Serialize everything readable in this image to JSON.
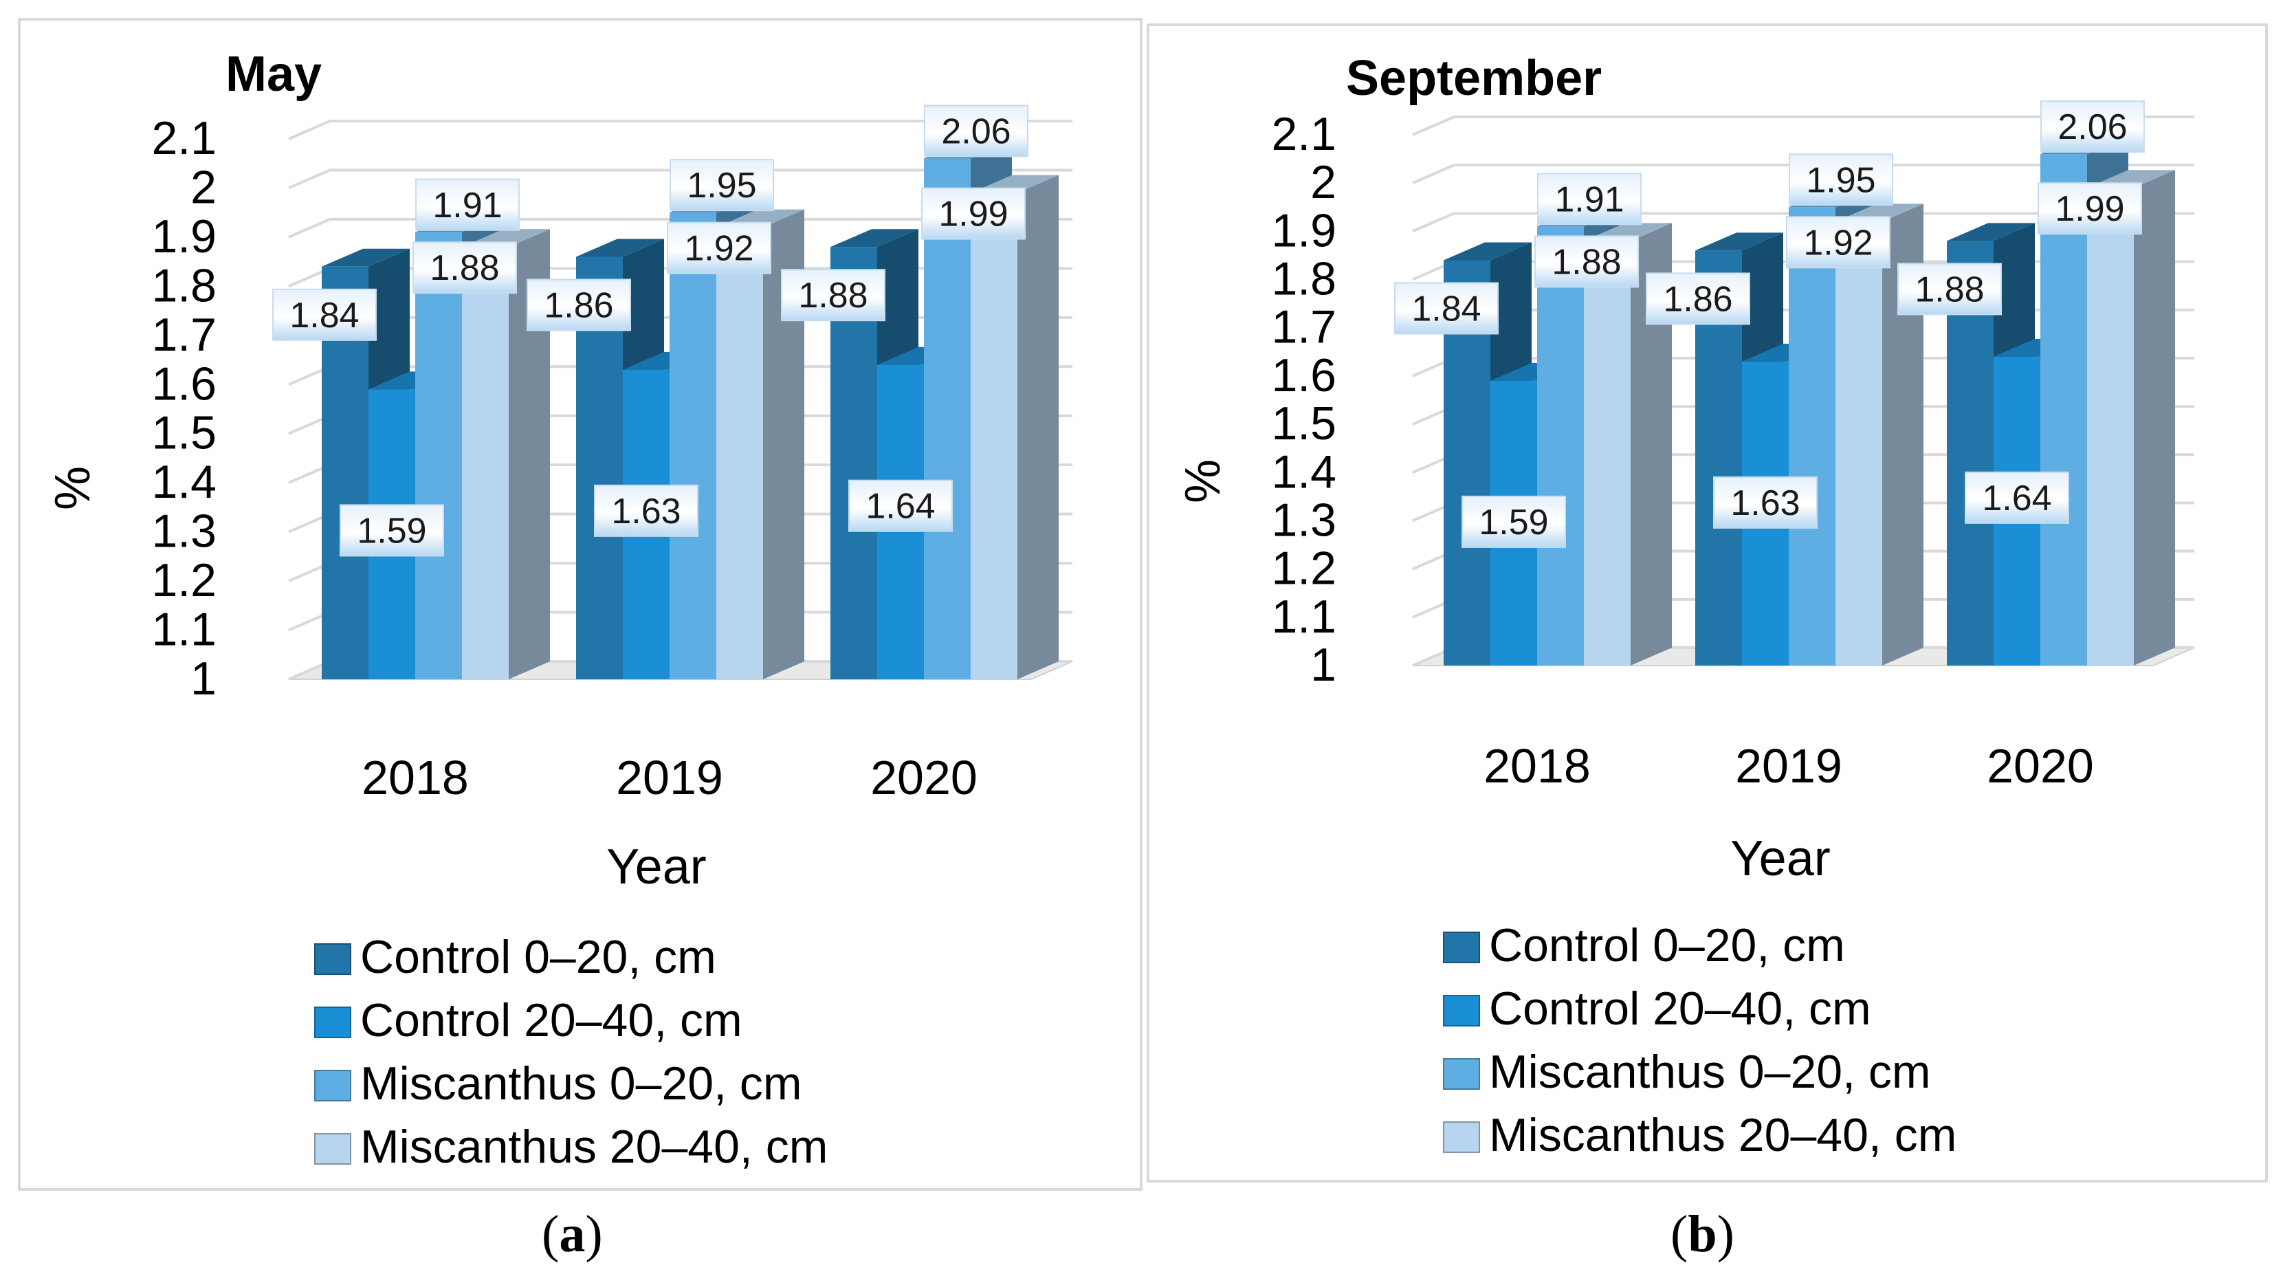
{
  "chart_data": [
    {
      "type": "bar",
      "title": "May",
      "xlabel": "Year",
      "ylabel": "%",
      "ylim": [
        1,
        2.1
      ],
      "yticks": [
        "1",
        "1.1",
        "1.2",
        "1.3",
        "1.4",
        "1.5",
        "1.6",
        "1.7",
        "1.8",
        "1.9",
        "2",
        "2.1"
      ],
      "categories": [
        "2018",
        "2019",
        "2020"
      ],
      "series": [
        {
          "name": "Control 0–20, cm",
          "values": [
            1.84,
            1.86,
            1.88
          ],
          "labels": [
            "1.84",
            "1.86",
            "1.88"
          ]
        },
        {
          "name": "Control 20–40, cm",
          "values": [
            1.59,
            1.63,
            1.64
          ],
          "labels": [
            "1.59",
            "1.63",
            "1.64"
          ]
        },
        {
          "name": "Miscanthus 0–20, cm",
          "values": [
            1.91,
            1.95,
            2.06
          ],
          "labels": [
            "1.91",
            "1.95",
            "2.06"
          ]
        },
        {
          "name": "Miscanthus 20–40, cm",
          "values": [
            1.88,
            1.92,
            1.99
          ],
          "labels": [
            "1.88",
            "1.92",
            "1.99"
          ]
        }
      ],
      "colors": [
        "#2275a8",
        "#1b8fd6",
        "#5faee3",
        "#b7d5ee"
      ],
      "legend_position": "bottom",
      "grid": true
    },
    {
      "type": "bar",
      "title": "September",
      "xlabel": "Year",
      "ylabel": "%",
      "ylim": [
        1,
        2.1
      ],
      "yticks": [
        "1",
        "1.1",
        "1.2",
        "1.3",
        "1.4",
        "1.5",
        "1.6",
        "1.7",
        "1.8",
        "1.9",
        "2",
        "2.1"
      ],
      "categories": [
        "2018",
        "2019",
        "2020"
      ],
      "series": [
        {
          "name": "Control 0–20, cm",
          "values": [
            1.84,
            1.86,
            1.88
          ],
          "labels": [
            "1.84",
            "1.86",
            "1.88"
          ]
        },
        {
          "name": "Control 20–40, cm",
          "values": [
            1.59,
            1.63,
            1.64
          ],
          "labels": [
            "1.59",
            "1.63",
            "1.64"
          ]
        },
        {
          "name": "Miscanthus 0–20, cm",
          "values": [
            1.91,
            1.95,
            2.06
          ],
          "labels": [
            "1.91",
            "1.95",
            "2.06"
          ]
        },
        {
          "name": "Miscanthus 20–40, cm",
          "values": [
            1.88,
            1.92,
            1.99
          ],
          "labels": [
            "1.88",
            "1.92",
            "1.99"
          ]
        }
      ],
      "colors": [
        "#2275a8",
        "#1b8fd6",
        "#5faee3",
        "#b7d5ee"
      ],
      "legend_position": "bottom",
      "grid": true
    }
  ],
  "captions": {
    "a": {
      "open": "(",
      "letter": "a",
      "close": ")"
    },
    "b": {
      "open": "(",
      "letter": "b",
      "close": ")"
    }
  }
}
